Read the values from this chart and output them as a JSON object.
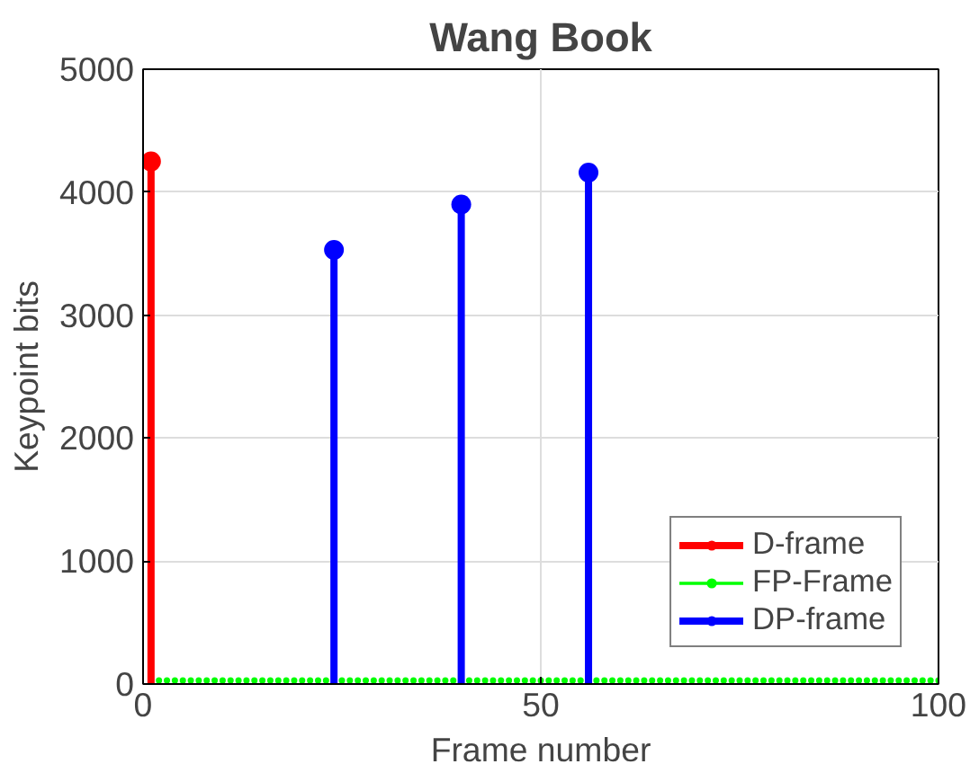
{
  "chart_data": {
    "type": "lollipop",
    "title": "Wang Book",
    "xlabel": "Frame number",
    "ylabel": "Keypoint bits",
    "xlim": [
      0,
      100
    ],
    "xticks": [
      0,
      50,
      100
    ],
    "ylim": [
      0,
      5000
    ],
    "yticks": [
      0,
      1000,
      2000,
      3000,
      4000,
      5000
    ],
    "grid": true,
    "legend": "bottom right",
    "marker": "circle",
    "series": [
      {
        "name": "D-frame",
        "color": "#ff0000",
        "x": [
          1
        ],
        "values": [
          4250
        ]
      },
      {
        "name": "FP-Frame",
        "color": "#00ff00",
        "x": [
          2,
          3,
          4,
          5,
          6,
          7,
          8,
          9,
          10,
          11,
          12,
          13,
          14,
          15,
          16,
          17,
          18,
          19,
          20,
          21,
          22,
          23,
          25,
          26,
          27,
          28,
          29,
          30,
          31,
          32,
          33,
          34,
          35,
          36,
          37,
          38,
          39,
          41,
          42,
          43,
          44,
          45,
          46,
          47,
          48,
          49,
          50,
          51,
          52,
          53,
          54,
          55,
          57,
          58,
          59,
          60,
          61,
          62,
          63,
          64,
          65,
          66,
          67,
          68,
          69,
          70,
          71,
          72,
          73,
          74,
          75,
          76,
          77,
          78,
          79,
          80,
          81,
          82,
          83,
          84,
          85,
          86,
          87,
          88,
          89,
          90,
          91,
          92,
          93,
          94,
          95,
          96,
          97,
          98,
          99,
          100
        ],
        "values": [
          30,
          30,
          30,
          30,
          30,
          30,
          30,
          30,
          30,
          30,
          30,
          30,
          30,
          30,
          30,
          30,
          30,
          30,
          30,
          30,
          30,
          30,
          30,
          30,
          30,
          30,
          30,
          30,
          30,
          30,
          30,
          30,
          30,
          30,
          30,
          30,
          30,
          30,
          30,
          30,
          30,
          30,
          30,
          30,
          30,
          30,
          30,
          30,
          30,
          30,
          30,
          30,
          30,
          30,
          30,
          30,
          30,
          30,
          30,
          30,
          30,
          30,
          30,
          30,
          30,
          30,
          30,
          30,
          30,
          30,
          30,
          30,
          30,
          30,
          30,
          30,
          30,
          30,
          30,
          30,
          30,
          30,
          30,
          30,
          30,
          30,
          30,
          30,
          30,
          30,
          30,
          30,
          30,
          30,
          30,
          30
        ]
      },
      {
        "name": "DP-frame",
        "color": "#0000ff",
        "x": [
          24,
          40,
          56
        ],
        "values": [
          3530,
          3900,
          4160
        ]
      }
    ]
  }
}
